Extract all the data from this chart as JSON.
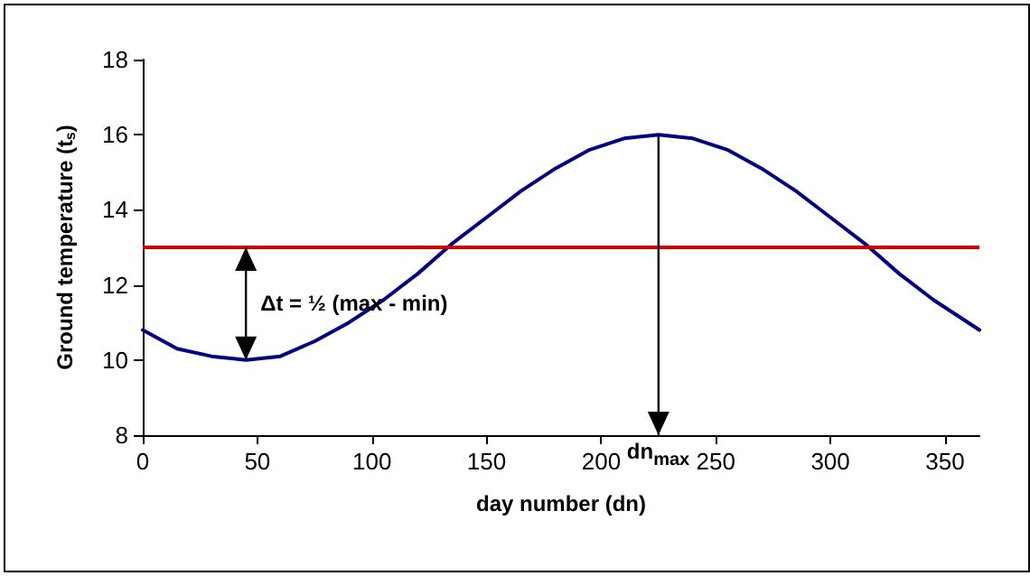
{
  "chart_data": {
    "type": "line",
    "xlabel": "day number (dn)",
    "ylabel": "Ground temperature (t$_{s}$)",
    "x": [
      0,
      15,
      30,
      45,
      60,
      75,
      90,
      105,
      120,
      135,
      150,
      165,
      180,
      195,
      210,
      225,
      240,
      255,
      270,
      285,
      300,
      315,
      330,
      345,
      365
    ],
    "series": [
      {
        "color": "#000080",
        "values": [
          10.8,
          10.3,
          10.1,
          10.0,
          10.1,
          10.5,
          11.0,
          11.6,
          12.3,
          13.1,
          13.8,
          14.5,
          15.1,
          15.6,
          15.9,
          16.0,
          15.9,
          15.6,
          15.1,
          14.5,
          13.8,
          13.1,
          12.3,
          11.6,
          10.8
        ]
      }
    ],
    "xlim": [
      0,
      365
    ],
    "xticks": [
      0,
      50,
      100,
      150,
      200,
      250,
      300,
      350
    ],
    "ylim": [
      8,
      18
    ],
    "yticks": [
      8,
      10,
      12,
      14,
      16,
      18
    ],
    "ref_lines": [
      {
        "axis": "y",
        "value": 13,
        "color": "#cc0000"
      }
    ],
    "annotations": [
      "Δt = ½ (max - min)",
      {
        "text": "dn$_{max}$",
        "x": 225,
        "y": 16
      }
    ],
    "grid": false,
    "marker": "none"
  }
}
